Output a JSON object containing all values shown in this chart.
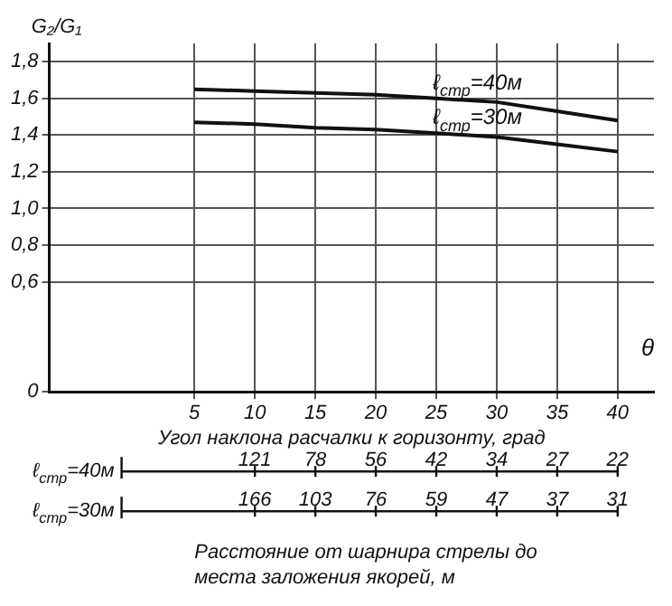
{
  "chart_data": {
    "type": "line",
    "xlabel": "Угол наклона расчалки к горизонту, град",
    "ylabel": "G₂/G₁",
    "x": [
      5,
      10,
      15,
      20,
      25,
      30,
      35,
      40
    ],
    "series": [
      {
        "name": "ℓ$_{стр}$=40м",
        "color": "#111111",
        "values": [
          1.65,
          1.64,
          1.63,
          1.62,
          1.6,
          1.58,
          1.53,
          1.48
        ]
      },
      {
        "name": "ℓ$_{стр}$=30м",
        "color": "#111111",
        "values": [
          1.47,
          1.46,
          1.44,
          1.43,
          1.41,
          1.39,
          1.35,
          1.31
        ]
      }
    ],
    "xlim": [
      -7,
      43
    ],
    "xticks": [
      5,
      10,
      15,
      20,
      25,
      30,
      35,
      40
    ],
    "ylim": [
      0,
      1.9
    ],
    "yticks": [
      0,
      {
        "value": 0.6,
        "label": "0,6"
      },
      {
        "value": 0.8,
        "label": "0,8"
      },
      {
        "value": 1.0,
        "label": "1,0"
      },
      {
        "value": 1.2,
        "label": "1,2"
      },
      {
        "value": 1.4,
        "label": "1,4"
      },
      {
        "value": 1.6,
        "label": "1,6"
      },
      {
        "value": 1.8,
        "label": "1,8"
      }
    ],
    "grid": true,
    "line_style": "solid",
    "annotations": [
      "θ",
      "ℓ$_{стр}$=40м",
      "121 78 56 42 34 27 22",
      "ℓ$_{стр}$=30м",
      "166 103 76 59 47 37 31",
      "Расстояние от шарнира стрелы до места заложения якорей, м"
    ]
  }
}
